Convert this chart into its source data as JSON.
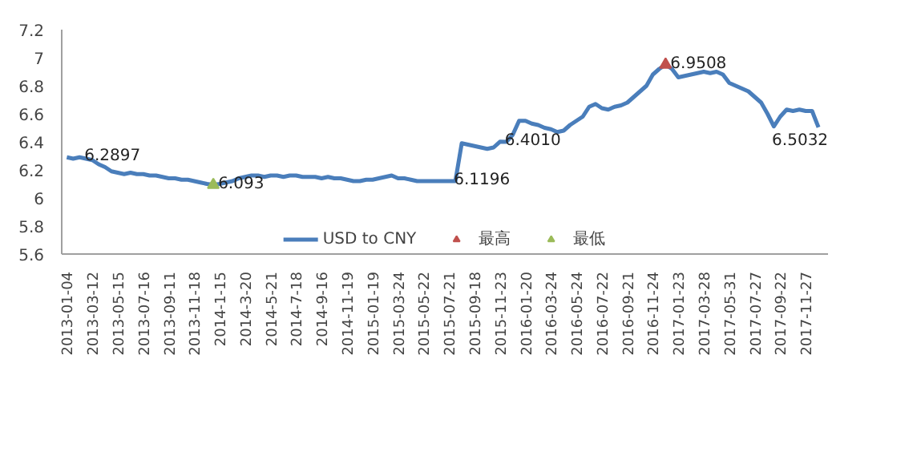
{
  "chart_data": {
    "type": "line",
    "categories": [
      "2013-01-04",
      null,
      null,
      null,
      "2013-03-12",
      null,
      null,
      null,
      "2013-05-15",
      null,
      null,
      null,
      "2013-07-16",
      null,
      null,
      null,
      "2013-09-11",
      null,
      null,
      null,
      "2013-11-18",
      null,
      null,
      null,
      "2014-1-15",
      null,
      null,
      null,
      "2014-3-20",
      null,
      null,
      null,
      "2014-5-21",
      null,
      null,
      null,
      "2014-7-18",
      null,
      null,
      null,
      "2014-9-16",
      null,
      null,
      null,
      "2014-11-19",
      null,
      null,
      null,
      "2015-01-19",
      null,
      null,
      null,
      "2015-03-24",
      null,
      null,
      null,
      "2015-05-22",
      null,
      null,
      null,
      "2015-07-21",
      null,
      null,
      null,
      "2015-09-18",
      null,
      null,
      null,
      "2015-11-23",
      null,
      null,
      null,
      "2016-01-20",
      null,
      null,
      null,
      "2016-03-24",
      null,
      null,
      null,
      "2016-05-24",
      null,
      null,
      null,
      "2016-07-22",
      null,
      null,
      null,
      "2016-09-21",
      null,
      null,
      null,
      "2016-11-24",
      null,
      null,
      null,
      "2017-01-23",
      null,
      null,
      null,
      "2017-03-28",
      null,
      null,
      null,
      "2017-05-31",
      null,
      null,
      null,
      "2017-07-27",
      null,
      null,
      null,
      "2017-09-22",
      null,
      null,
      null,
      "2017-11-27",
      null,
      null
    ],
    "series": [
      {
        "name": "USD to CNY",
        "color": "#4a7ebb",
        "values": [
          6.29,
          6.28,
          6.2897,
          6.28,
          6.27,
          6.24,
          6.22,
          6.19,
          6.18,
          6.17,
          6.18,
          6.17,
          6.17,
          6.16,
          6.16,
          6.15,
          6.14,
          6.14,
          6.13,
          6.13,
          6.12,
          6.11,
          6.1,
          6.093,
          6.1,
          6.11,
          6.12,
          6.14,
          6.15,
          6.16,
          6.16,
          6.15,
          6.16,
          6.16,
          6.15,
          6.16,
          6.16,
          6.15,
          6.15,
          6.15,
          6.14,
          6.15,
          6.14,
          6.14,
          6.13,
          6.12,
          6.12,
          6.13,
          6.13,
          6.14,
          6.15,
          6.16,
          6.14,
          6.14,
          6.13,
          6.12,
          6.12,
          6.12,
          6.12,
          6.12,
          6.1196,
          6.12,
          6.39,
          6.38,
          6.37,
          6.36,
          6.35,
          6.36,
          6.401,
          6.4,
          6.45,
          6.55,
          6.55,
          6.53,
          6.52,
          6.5,
          6.49,
          6.47,
          6.48,
          6.52,
          6.55,
          6.58,
          6.65,
          6.67,
          6.64,
          6.63,
          6.65,
          6.66,
          6.68,
          6.72,
          6.76,
          6.8,
          6.88,
          6.92,
          6.9508,
          6.92,
          6.86,
          6.87,
          6.88,
          6.89,
          6.9,
          6.89,
          6.9,
          6.88,
          6.82,
          6.8,
          6.78,
          6.76,
          6.72,
          6.68,
          6.6,
          6.51,
          6.58,
          6.63,
          6.62,
          6.63,
          6.62,
          6.62,
          6.5032
        ],
        "value_labels": [
          null,
          null,
          "6.2897",
          null,
          null,
          null,
          null,
          null,
          null,
          null,
          null,
          null,
          null,
          null,
          null,
          null,
          null,
          null,
          null,
          null,
          null,
          null,
          null,
          "6.093",
          null,
          null,
          null,
          null,
          null,
          null,
          null,
          null,
          null,
          null,
          null,
          null,
          null,
          null,
          null,
          null,
          null,
          null,
          null,
          null,
          null,
          null,
          null,
          null,
          null,
          null,
          null,
          null,
          null,
          null,
          null,
          null,
          null,
          null,
          null,
          null,
          "6.1196",
          null,
          null,
          null,
          null,
          null,
          null,
          null,
          "6.4010",
          null,
          null,
          null,
          null,
          null,
          null,
          null,
          null,
          null,
          null,
          null,
          null,
          null,
          null,
          null,
          null,
          null,
          null,
          null,
          null,
          null,
          null,
          null,
          null,
          null,
          "6.9508",
          null,
          null,
          null,
          null,
          null,
          null,
          null,
          null,
          null,
          null,
          null,
          null,
          null,
          null,
          null,
          null,
          null,
          null,
          null,
          null,
          null,
          null,
          null,
          "6.5032"
        ]
      },
      {
        "name": "最高",
        "type": "scatter",
        "marker": "triangle",
        "color": "#c0504d",
        "values": [
          null,
          null,
          null,
          null,
          null,
          null,
          null,
          null,
          null,
          null,
          null,
          null,
          null,
          null,
          null,
          null,
          null,
          null,
          null,
          null,
          null,
          null,
          null,
          null,
          null,
          null,
          null,
          null,
          null,
          null,
          null,
          null,
          null,
          null,
          null,
          null,
          null,
          null,
          null,
          null,
          null,
          null,
          null,
          null,
          null,
          null,
          null,
          null,
          null,
          null,
          null,
          null,
          null,
          null,
          null,
          null,
          null,
          null,
          null,
          null,
          null,
          null,
          null,
          null,
          null,
          null,
          null,
          null,
          null,
          null,
          null,
          null,
          null,
          null,
          null,
          null,
          null,
          null,
          null,
          null,
          null,
          null,
          null,
          null,
          null,
          null,
          null,
          null,
          null,
          null,
          null,
          null,
          null,
          null,
          6.9508,
          null,
          null,
          null,
          null,
          null,
          null,
          null,
          null,
          null,
          null,
          null,
          null,
          null,
          null,
          null,
          null,
          null,
          null,
          null,
          null,
          null,
          null,
          null,
          null
        ]
      },
      {
        "name": "最低",
        "type": "scatter",
        "marker": "triangle",
        "color": "#9bbb59",
        "values": [
          null,
          null,
          null,
          null,
          null,
          null,
          null,
          null,
          null,
          null,
          null,
          null,
          null,
          null,
          null,
          null,
          null,
          null,
          null,
          null,
          null,
          null,
          null,
          6.093,
          null,
          null,
          null,
          null,
          null,
          null,
          null,
          null,
          null,
          null,
          null,
          null,
          null,
          null,
          null,
          null,
          null,
          null,
          null,
          null,
          null,
          null,
          null,
          null,
          null,
          null,
          null,
          null,
          null,
          null,
          null,
          null,
          null,
          null,
          null,
          null,
          null,
          null,
          null,
          null,
          null,
          null,
          null,
          null,
          null,
          null,
          null,
          null,
          null,
          null,
          null,
          null,
          null,
          null,
          null,
          null,
          null,
          null,
          null,
          null,
          null,
          null,
          null,
          null,
          null,
          null,
          null,
          null,
          null,
          null,
          null,
          null,
          null,
          null,
          null,
          null,
          null,
          null,
          null,
          null,
          null,
          null,
          null,
          null,
          null,
          null,
          null,
          null,
          null,
          null,
          null,
          null,
          null,
          null,
          null
        ]
      }
    ],
    "ylim": [
      5.6,
      7.2
    ],
    "yticks": [
      5.6,
      5.8,
      6,
      6.2,
      6.4,
      6.6,
      6.8,
      7,
      7.2
    ],
    "line_style": "solid",
    "grid": false,
    "legend": "bottom"
  }
}
